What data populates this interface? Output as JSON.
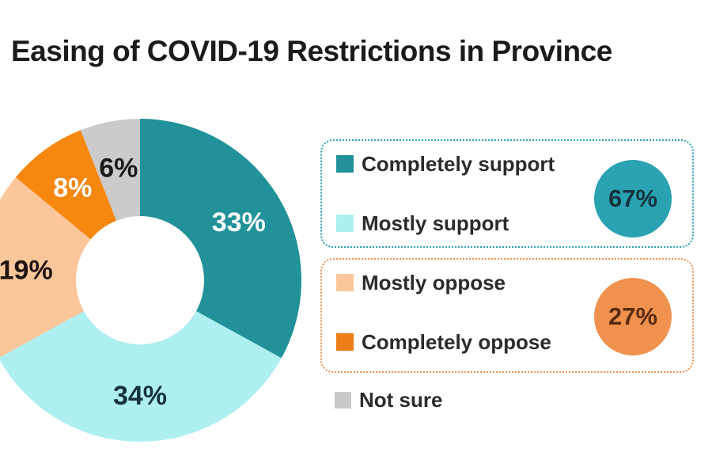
{
  "title": "Easing of COVID-19 Restrictions in Province",
  "chart_data": {
    "type": "pie",
    "subtype": "donut",
    "title": "Easing of COVID-19 Restrictions in Province",
    "direction": "clockwise",
    "start_angle_deg": 0,
    "slices": [
      {
        "label": "Completely support",
        "value": 33,
        "display": "33%",
        "color": "#21929A",
        "label_color": "#FFFFFF"
      },
      {
        "label": "Mostly support",
        "value": 34,
        "display": "34%",
        "color": "#AEEFF2",
        "label_color": "#14323C"
      },
      {
        "label": "Mostly oppose",
        "value": 19,
        "display": "19%",
        "color": "#FBC69A",
        "label_color": "#1E1410"
      },
      {
        "label": "Completely oppose",
        "value": 8,
        "display": "8%",
        "color": "#F6870F",
        "label_color": "#FFFFFF"
      },
      {
        "label": "Not sure",
        "value": 6,
        "display": "6%",
        "color": "#CBCBCB",
        "label_color": "#1A1A1A"
      }
    ],
    "groups": [
      {
        "name": "support",
        "members": [
          "Completely support",
          "Mostly support"
        ],
        "total": 67,
        "display": "67%"
      },
      {
        "name": "oppose",
        "members": [
          "Mostly oppose",
          "Completely oppose"
        ],
        "total": 27,
        "display": "27%"
      }
    ]
  },
  "legend": {
    "support_group": {
      "border_color": "#2BA2B1",
      "items": [
        {
          "label": "Completely support",
          "swatch_color": "#21929A"
        },
        {
          "label": "Mostly support",
          "swatch_color": "#AEEFF2"
        }
      ],
      "total_label": "67%",
      "circle_color": "#2BA2B1",
      "total_text_color": "#14323E"
    },
    "oppose_group": {
      "border_color": "#F0914D",
      "items": [
        {
          "label": "Mostly oppose",
          "swatch_color": "#FBC69A"
        },
        {
          "label": "Completely oppose",
          "swatch_color": "#ED7D17"
        }
      ],
      "total_label": "27%",
      "circle_color": "#F0914D",
      "total_text_color": "#5B2B0E"
    },
    "not_sure": {
      "label": "Not sure",
      "swatch_color": "#C9C9C9"
    }
  }
}
